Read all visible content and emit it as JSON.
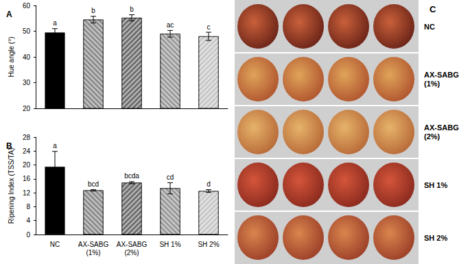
{
  "chart_data": [
    {
      "type": "bar",
      "title": "A",
      "categories": [
        "NC",
        "AX-SABG (1%)",
        "AX-SABG (2%)",
        "SH 1%",
        "SH 2%"
      ],
      "values": [
        49.5,
        54.5,
        55.2,
        49.0,
        48.0
      ],
      "errors": [
        1.5,
        1.3,
        1.2,
        1.3,
        1.6
      ],
      "annotations": [
        "a",
        "b",
        "b",
        "ac",
        "c"
      ],
      "colors": [
        "#000000",
        "#8c8c8c",
        "#6e6e6e",
        "#9a9a9a",
        "#c8c8c8"
      ],
      "y_label": "Hue angle (°)",
      "ylim": [
        20,
        60
      ],
      "yticks": [
        20,
        30,
        40,
        50,
        60
      ],
      "grid": false,
      "tick_labels": "y"
    },
    {
      "type": "bar",
      "title": "B",
      "categories": [
        "NC",
        "AX-SABG (1%)",
        "AX-SABG (2%)",
        "SH 1%",
        "SH 2%"
      ],
      "values": [
        19.5,
        12.7,
        14.9,
        13.3,
        12.5
      ],
      "errors": [
        4.4,
        0.2,
        0.3,
        1.6,
        0.4
      ],
      "annotations": [
        "a",
        "bcd",
        "bcda",
        "cd",
        "d"
      ],
      "colors": [
        "#000000",
        "#8c8c8c",
        "#6e6e6e",
        "#9a9a9a",
        "#c8c8c8"
      ],
      "y_label": "Ripening Index (TSS/TA)",
      "ylim": [
        0,
        28
      ],
      "yticks": [
        0,
        4,
        8,
        12,
        16,
        20,
        24,
        28
      ],
      "grid": false
    }
  ],
  "photo_panel": {
    "label": "C",
    "rows": [
      "NC",
      "AX-SABG (1%)",
      "AX-SABG (2%)",
      "SH 1%",
      "SH 2%"
    ]
  }
}
